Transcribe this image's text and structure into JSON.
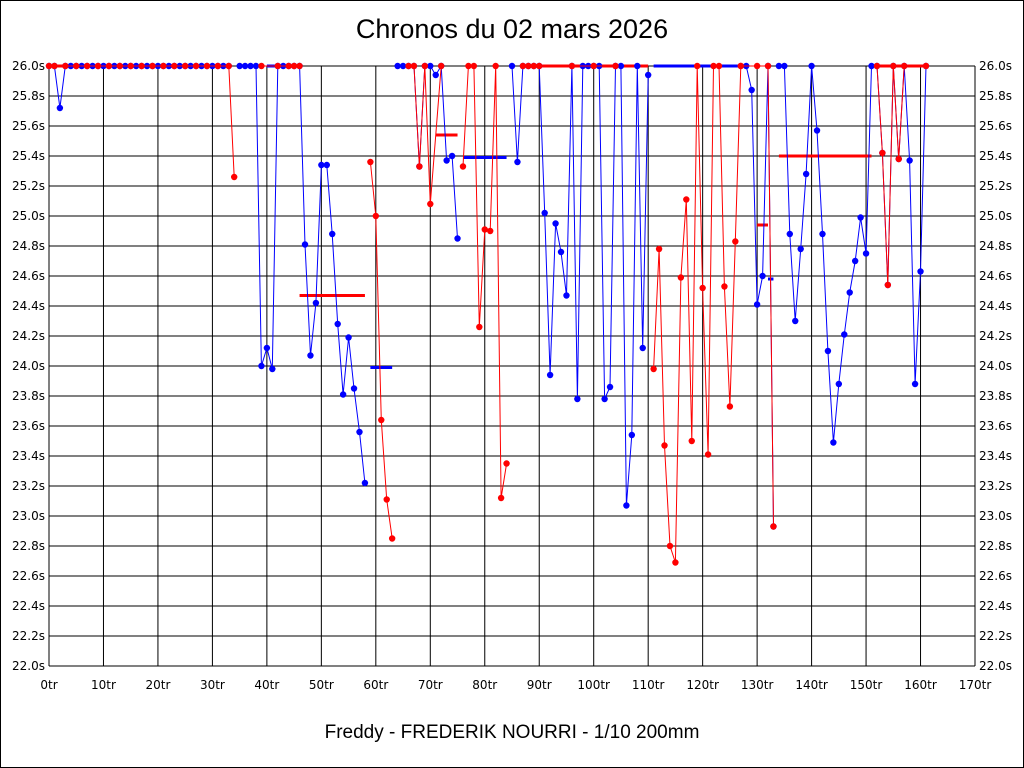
{
  "title": "Chronos du 02 mars 2026",
  "footer": "Freddy - FREDERIK NOURRI - 1/10 200mm",
  "colors": {
    "blue": "#0000ff",
    "red": "#ff0000",
    "grid": "#000000"
  },
  "chart_data": {
    "type": "line",
    "title": "Chronos du 02 mars 2026",
    "xlabel": "",
    "ylabel": "",
    "xlim": [
      0,
      170
    ],
    "ylim": [
      22.0,
      26.0
    ],
    "grid": true,
    "x_ticks": [
      "0tr",
      "10tr",
      "20tr",
      "30tr",
      "40tr",
      "50tr",
      "60tr",
      "70tr",
      "80tr",
      "90tr",
      "100tr",
      "110tr",
      "120tr",
      "130tr",
      "140tr",
      "150tr",
      "160tr",
      "170tr"
    ],
    "y_ticks": [
      "22.0s",
      "22.2s",
      "22.4s",
      "22.6s",
      "22.8s",
      "23.0s",
      "23.2s",
      "23.4s",
      "23.6s",
      "23.8s",
      "24.0s",
      "24.2s",
      "24.4s",
      "24.6s",
      "24.8s",
      "25.0s",
      "25.2s",
      "25.4s",
      "25.6s",
      "25.8s",
      "26.0s"
    ],
    "series": [
      {
        "color": "blue",
        "points": [
          [
            0,
            26.0
          ],
          [
            1,
            26.0
          ],
          [
            2,
            25.72
          ],
          [
            3,
            26.0
          ],
          [
            4,
            26.0
          ],
          [
            5,
            26.0
          ],
          [
            6,
            26.0
          ],
          [
            7,
            26.0
          ],
          [
            8,
            26.0
          ],
          [
            9,
            26.0
          ],
          [
            10,
            26.0
          ],
          [
            11,
            26.0
          ],
          [
            12,
            26.0
          ],
          [
            13,
            26.0
          ],
          [
            14,
            26.0
          ],
          [
            15,
            26.0
          ],
          [
            16,
            26.0
          ],
          [
            17,
            26.0
          ],
          [
            18,
            26.0
          ],
          [
            19,
            26.0
          ],
          [
            20,
            26.0
          ],
          [
            21,
            26.0
          ],
          [
            22,
            26.0
          ],
          [
            23,
            26.0
          ],
          [
            24,
            26.0
          ],
          [
            25,
            26.0
          ],
          [
            26,
            26.0
          ],
          [
            27,
            26.0
          ],
          [
            28,
            26.0
          ],
          [
            29,
            26.0
          ],
          [
            30,
            26.0
          ],
          [
            31,
            26.0
          ],
          [
            32,
            26.0
          ],
          [
            33,
            26.0
          ]
        ]
      },
      {
        "color": "red",
        "points": [
          [
            0,
            26.0
          ],
          [
            1,
            26.0
          ],
          [
            3,
            26.0
          ],
          [
            5,
            26.0
          ],
          [
            7,
            26.0
          ],
          [
            9,
            26.0
          ],
          [
            11,
            26.0
          ],
          [
            13,
            26.0
          ],
          [
            15,
            26.0
          ],
          [
            17,
            26.0
          ],
          [
            19,
            26.0
          ],
          [
            21,
            26.0
          ],
          [
            23,
            26.0
          ],
          [
            25,
            26.0
          ],
          [
            27,
            26.0
          ],
          [
            29,
            26.0
          ],
          [
            31,
            26.0
          ],
          [
            33,
            26.0
          ],
          [
            34,
            25.26
          ]
        ]
      },
      {
        "color": "blue",
        "points": [
          [
            35,
            26.0
          ],
          [
            36,
            26.0
          ],
          [
            37,
            26.0
          ],
          [
            38,
            26.0
          ],
          [
            39,
            24.0
          ],
          [
            40,
            24.12
          ],
          [
            41,
            23.98
          ],
          [
            42,
            26.0
          ],
          [
            43,
            26.0
          ],
          [
            44,
            26.0
          ],
          [
            45,
            26.0
          ],
          [
            46,
            26.0
          ],
          [
            47,
            24.81
          ],
          [
            48,
            24.07
          ],
          [
            49,
            24.42
          ],
          [
            50,
            25.34
          ],
          [
            51,
            25.34
          ],
          [
            52,
            24.88
          ],
          [
            53,
            24.28
          ],
          [
            54,
            23.81
          ],
          [
            55,
            24.19
          ],
          [
            56,
            23.85
          ],
          [
            57,
            23.56
          ],
          [
            58,
            23.22
          ]
        ]
      },
      {
        "color": "red",
        "points": [
          [
            39,
            26.0
          ],
          [
            42,
            26.0
          ],
          [
            44,
            26.0
          ],
          [
            45,
            26.0
          ],
          [
            46,
            26.0
          ]
        ]
      },
      {
        "color": "red",
        "points": [
          [
            59,
            25.36
          ],
          [
            60,
            25.0
          ],
          [
            61,
            23.64
          ],
          [
            62,
            23.11
          ],
          [
            63,
            22.85
          ]
        ]
      },
      {
        "color": "blue",
        "points": [
          [
            64,
            26.0
          ],
          [
            65,
            26.0
          ],
          [
            66,
            26.0
          ],
          [
            67,
            26.0
          ],
          [
            68,
            25.33
          ],
          [
            69,
            26.0
          ],
          [
            70,
            26.0
          ],
          [
            71,
            25.94
          ],
          [
            72,
            26.0
          ],
          [
            73,
            25.37
          ],
          [
            74,
            25.4
          ],
          [
            75,
            24.85
          ]
        ]
      },
      {
        "color": "red",
        "points": [
          [
            66,
            26.0
          ],
          [
            67,
            26.0
          ],
          [
            68,
            25.33
          ],
          [
            69,
            26.0
          ],
          [
            70,
            25.08
          ],
          [
            72,
            26.0
          ]
        ]
      },
      {
        "color": "red",
        "points": [
          [
            76,
            25.33
          ],
          [
            77,
            26.0
          ],
          [
            78,
            26.0
          ],
          [
            79,
            24.26
          ],
          [
            80,
            24.91
          ],
          [
            81,
            24.9
          ],
          [
            82,
            26.0
          ],
          [
            83,
            23.12
          ],
          [
            84,
            23.35
          ]
        ]
      },
      {
        "color": "blue",
        "points": [
          [
            85,
            26.0
          ],
          [
            86,
            25.36
          ],
          [
            87,
            26.0
          ],
          [
            88,
            26.0
          ],
          [
            89,
            26.0
          ],
          [
            90,
            26.0
          ],
          [
            91,
            25.02
          ],
          [
            92,
            23.94
          ],
          [
            93,
            24.95
          ],
          [
            94,
            24.76
          ],
          [
            95,
            24.47
          ],
          [
            96,
            26.0
          ],
          [
            97,
            23.78
          ],
          [
            98,
            26.0
          ],
          [
            99,
            26.0
          ],
          [
            100,
            26.0
          ],
          [
            101,
            26.0
          ],
          [
            102,
            23.78
          ],
          [
            103,
            23.86
          ],
          [
            104,
            26.0
          ],
          [
            105,
            26.0
          ],
          [
            106,
            23.07
          ],
          [
            107,
            23.54
          ],
          [
            108,
            26.0
          ],
          [
            109,
            24.12
          ],
          [
            110,
            25.94
          ]
        ]
      },
      {
        "color": "red",
        "points": [
          [
            87,
            26.0
          ],
          [
            88,
            26.0
          ],
          [
            89,
            26.0
          ],
          [
            90,
            26.0
          ],
          [
            96,
            26.0
          ],
          [
            100,
            26.0
          ],
          [
            104,
            26.0
          ]
        ]
      },
      {
        "color": "red",
        "points": [
          [
            111,
            23.98
          ],
          [
            112,
            24.78
          ],
          [
            113,
            23.47
          ],
          [
            114,
            22.8
          ],
          [
            115,
            22.69
          ],
          [
            116,
            24.59
          ],
          [
            117,
            25.11
          ],
          [
            118,
            23.5
          ],
          [
            119,
            26.0
          ],
          [
            120,
            24.52
          ],
          [
            121,
            23.41
          ],
          [
            122,
            26.0
          ],
          [
            123,
            26.0
          ],
          [
            124,
            24.53
          ],
          [
            125,
            23.73
          ],
          [
            126,
            24.83
          ],
          [
            127,
            26.0
          ]
        ]
      },
      {
        "color": "blue",
        "points": [
          [
            128,
            26.0
          ],
          [
            129,
            25.84
          ],
          [
            130,
            24.41
          ],
          [
            131,
            24.6
          ],
          [
            132,
            26.0
          ],
          [
            133,
            22.93
          ]
        ]
      },
      {
        "color": "red",
        "points": [
          [
            127,
            26.0
          ],
          [
            130,
            26.0
          ],
          [
            132,
            26.0
          ],
          [
            133,
            22.93
          ]
        ]
      },
      {
        "color": "blue",
        "points": [
          [
            134,
            26.0
          ],
          [
            135,
            26.0
          ],
          [
            136,
            24.88
          ],
          [
            137,
            24.3
          ],
          [
            138,
            24.78
          ],
          [
            139,
            25.28
          ],
          [
            140,
            26.0
          ],
          [
            141,
            25.57
          ],
          [
            142,
            24.88
          ],
          [
            143,
            24.1
          ],
          [
            144,
            23.49
          ],
          [
            145,
            23.88
          ],
          [
            146,
            24.21
          ],
          [
            147,
            24.49
          ],
          [
            148,
            24.7
          ],
          [
            149,
            24.99
          ],
          [
            150,
            24.75
          ],
          [
            151,
            26.0
          ],
          [
            152,
            26.0
          ],
          [
            153,
            25.42
          ],
          [
            154,
            24.54
          ],
          [
            155,
            26.0
          ],
          [
            156,
            25.38
          ],
          [
            157,
            26.0
          ],
          [
            158,
            25.37
          ],
          [
            159,
            23.88
          ],
          [
            160,
            24.63
          ],
          [
            161,
            26.0
          ]
        ]
      },
      {
        "color": "red",
        "points": [
          [
            152,
            26.0
          ],
          [
            153,
            25.42
          ],
          [
            154,
            24.54
          ],
          [
            155,
            26.0
          ],
          [
            156,
            25.38
          ],
          [
            157,
            26.0
          ],
          [
            161,
            26.0
          ]
        ]
      }
    ],
    "average_lines": [
      {
        "color": "red",
        "x": [
          0,
          33
        ],
        "y": 26.0
      },
      {
        "color": "blue",
        "x": [
          40,
          46
        ],
        "y": 26.0
      },
      {
        "color": "red",
        "x": [
          46,
          58
        ],
        "y": 24.47
      },
      {
        "color": "blue",
        "x": [
          59,
          63
        ],
        "y": 23.99
      },
      {
        "color": "red",
        "x": [
          71,
          75
        ],
        "y": 25.54
      },
      {
        "color": "blue",
        "x": [
          76,
          84
        ],
        "y": 25.39
      },
      {
        "color": "red",
        "x": [
          87,
          110
        ],
        "y": 26.0
      },
      {
        "color": "blue",
        "x": [
          111,
          127
        ],
        "y": 26.0
      },
      {
        "color": "red",
        "x": [
          130,
          132
        ],
        "y": 24.94
      },
      {
        "color": "blue",
        "x": [
          132,
          133
        ],
        "y": 24.58
      },
      {
        "color": "red",
        "x": [
          134,
          151
        ],
        "y": 25.4
      },
      {
        "color": "red",
        "x": [
          152,
          161
        ],
        "y": 26.0
      }
    ]
  }
}
